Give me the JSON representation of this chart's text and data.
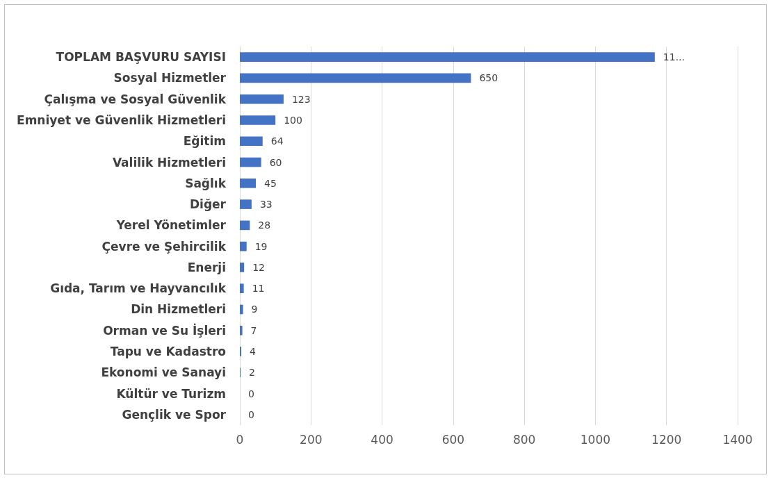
{
  "chart_data": {
    "type": "bar",
    "orientation": "horizontal",
    "categories": [
      "TOPLAM BAŞVURU SAYISI",
      "Sosyal Hizmetler",
      "Çalışma ve Sosyal Güvenlik",
      "Emniyet ve Güvenlik Hizmetleri",
      "Eğitim",
      "Valilik Hizmetleri",
      "Sağlık",
      "Diğer",
      "Yerel Yönetimler",
      "Çevre ve Şehircilik",
      "Enerji",
      "Gıda, Tarım ve Hayvancılık",
      "Din Hizmetleri",
      "Orman ve Su İşleri",
      "Tapu ve Kadastro",
      "Ekonomi ve Sanayi",
      "Kültür ve Turizm",
      "Gençlik ve Spor"
    ],
    "values": [
      1167,
      650,
      123,
      100,
      64,
      60,
      45,
      33,
      28,
      19,
      12,
      11,
      9,
      7,
      4,
      2,
      0,
      0
    ],
    "value_labels": [
      "11...",
      "650",
      "123",
      "100",
      "64",
      "60",
      "45",
      "33",
      "28",
      "19",
      "12",
      "11",
      "9",
      "7",
      "4",
      "2",
      "0",
      "0"
    ],
    "color": "#4472c4",
    "xlim": [
      0,
      1400
    ],
    "xticks": [
      0,
      200,
      400,
      600,
      800,
      1000,
      1200,
      1400
    ],
    "grid": "x"
  }
}
